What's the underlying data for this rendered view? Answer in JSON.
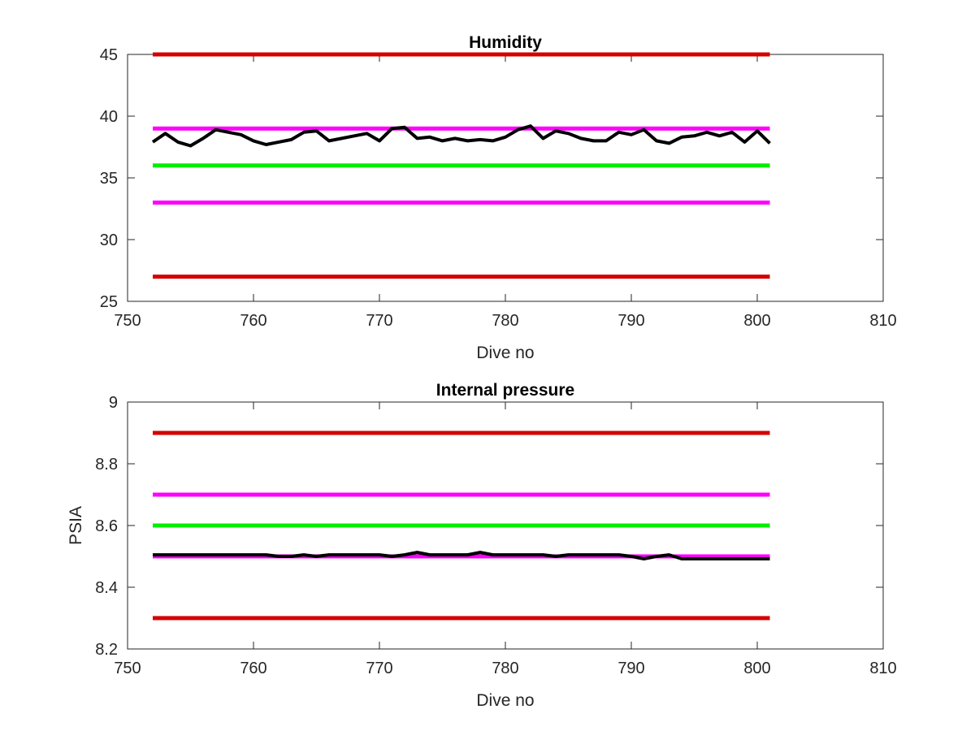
{
  "chart_data": [
    {
      "type": "line",
      "title": "Humidity",
      "xlabel": "Dive no",
      "ylabel": "",
      "xlim": [
        750,
        810
      ],
      "ylim": [
        25,
        45
      ],
      "xticks": [
        750,
        760,
        770,
        780,
        790,
        800,
        810
      ],
      "yticks": [
        25,
        30,
        35,
        40,
        45
      ],
      "grid": false,
      "reference_lines": [
        {
          "y": 45,
          "x_range": [
            752,
            801
          ],
          "color": "#d40000"
        },
        {
          "y": 39,
          "x_range": [
            752,
            801
          ],
          "color": "#ff00ff"
        },
        {
          "y": 36,
          "x_range": [
            752,
            801
          ],
          "color": "#00ee00"
        },
        {
          "y": 33,
          "x_range": [
            752,
            801
          ],
          "color": "#ff00ff"
        },
        {
          "y": 27,
          "x_range": [
            752,
            801
          ],
          "color": "#d40000"
        }
      ],
      "series": [
        {
          "color": "#000000",
          "x": [
            752,
            753,
            754,
            755,
            756,
            757,
            758,
            759,
            760,
            761,
            762,
            763,
            764,
            765,
            766,
            767,
            768,
            769,
            770,
            771,
            772,
            773,
            774,
            775,
            776,
            777,
            778,
            779,
            780,
            781,
            782,
            783,
            784,
            785,
            786,
            787,
            788,
            789,
            790,
            791,
            792,
            793,
            794,
            795,
            796,
            797,
            798,
            799,
            800,
            801
          ],
          "y": [
            37.9,
            38.6,
            37.9,
            37.6,
            38.2,
            38.9,
            38.7,
            38.5,
            38.0,
            37.7,
            37.9,
            38.1,
            38.7,
            38.8,
            38.0,
            38.2,
            38.4,
            38.6,
            38.0,
            39.0,
            39.1,
            38.2,
            38.3,
            38.0,
            38.2,
            38.0,
            38.1,
            38.0,
            38.3,
            38.9,
            39.2,
            38.2,
            38.8,
            38.6,
            38.2,
            38.0,
            38.0,
            38.7,
            38.5,
            38.9,
            38.0,
            37.8,
            38.3,
            38.4,
            38.7,
            38.4,
            38.7,
            37.9,
            38.8,
            37.8
          ]
        }
      ]
    },
    {
      "type": "line",
      "title": "Internal pressure",
      "xlabel": "Dive no",
      "ylabel": "PSIA",
      "xlim": [
        750,
        810
      ],
      "ylim": [
        8.2,
        9
      ],
      "xticks": [
        750,
        760,
        770,
        780,
        790,
        800,
        810
      ],
      "yticks": [
        8.2,
        8.4,
        8.6,
        8.8,
        9
      ],
      "grid": false,
      "reference_lines": [
        {
          "y": 8.9,
          "x_range": [
            752,
            801
          ],
          "color": "#d40000"
        },
        {
          "y": 8.7,
          "x_range": [
            752,
            801
          ],
          "color": "#ff00ff"
        },
        {
          "y": 8.6,
          "x_range": [
            752,
            801
          ],
          "color": "#00ee00"
        },
        {
          "y": 8.5,
          "x_range": [
            752,
            801
          ],
          "color": "#ff00ff"
        },
        {
          "y": 8.3,
          "x_range": [
            752,
            801
          ],
          "color": "#d40000"
        }
      ],
      "series": [
        {
          "color": "#000000",
          "x": [
            752,
            753,
            754,
            755,
            756,
            757,
            758,
            759,
            760,
            761,
            762,
            763,
            764,
            765,
            766,
            767,
            768,
            769,
            770,
            771,
            772,
            773,
            774,
            775,
            776,
            777,
            778,
            779,
            780,
            781,
            782,
            783,
            784,
            785,
            786,
            787,
            788,
            789,
            790,
            791,
            792,
            793,
            794,
            795,
            796,
            797,
            798,
            799,
            800,
            801
          ],
          "y": [
            8.505,
            8.505,
            8.505,
            8.505,
            8.505,
            8.505,
            8.505,
            8.505,
            8.505,
            8.505,
            8.5,
            8.5,
            8.505,
            8.5,
            8.505,
            8.505,
            8.505,
            8.505,
            8.505,
            8.5,
            8.505,
            8.513,
            8.505,
            8.505,
            8.505,
            8.505,
            8.513,
            8.505,
            8.505,
            8.505,
            8.505,
            8.505,
            8.5,
            8.505,
            8.505,
            8.505,
            8.505,
            8.505,
            8.5,
            8.492,
            8.5,
            8.505,
            8.492,
            8.492,
            8.492,
            8.492,
            8.492,
            8.492,
            8.492,
            8.492
          ]
        }
      ]
    }
  ]
}
